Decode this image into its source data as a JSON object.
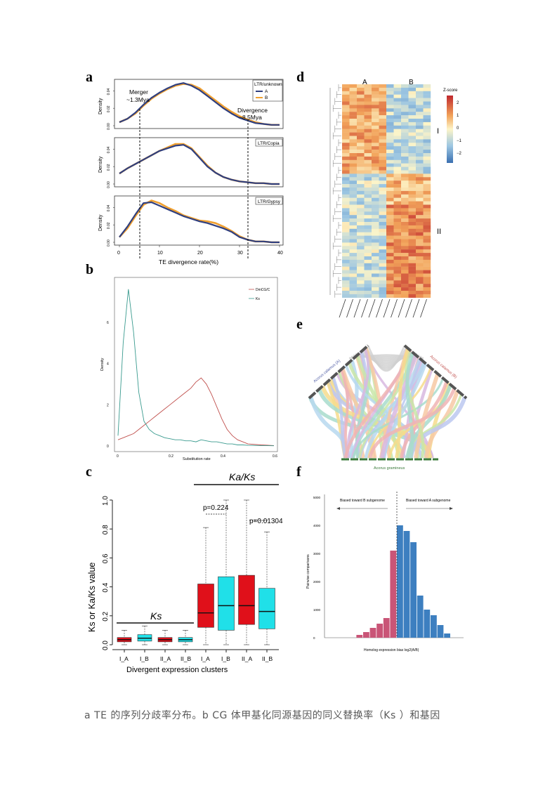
{
  "figure": {
    "panels": {
      "a": "a",
      "b": "b",
      "c": "c",
      "d": "d",
      "e": "e",
      "f": "f"
    },
    "caption": "a TE  的序列分歧率分布。b CG 体甲基化同源基因的同义替换率（Ks  ）和基因"
  },
  "panel_a": {
    "xlabel": "TE divergence rate(%)",
    "ylabel": "Density",
    "xticks": [
      "0",
      "10",
      "20",
      "30",
      "40"
    ],
    "yticks": [
      "0.00",
      "0.02",
      "0.04"
    ],
    "legend_title": "LTR/unknown",
    "legend": [
      {
        "name": "A",
        "color": "#2f3f7f"
      },
      {
        "name": "B",
        "color": "#f0a030"
      }
    ],
    "sub_titles": [
      "LTR/unknown",
      "LTR/Copia",
      "LTR/Gypsy"
    ],
    "annotations": {
      "merger": "Merger\n~1.3Mya",
      "merger_l1": "Merger",
      "merger_l2": "~1.3Mya",
      "divergence_l1": "Divergence",
      "divergence_l2": "~8.5Mya"
    }
  },
  "panel_b": {
    "xlabel": "Substitution rate",
    "ylabel": "Density",
    "xticks": [
      "0",
      "0.2",
      "0.4",
      "0.6"
    ],
    "yticks": [
      "0",
      "2",
      "4",
      "6"
    ],
    "legend": [
      {
        "name": "DmCG/C",
        "color": "#c0504d"
      },
      {
        "name": "Ks",
        "color": "#3a9b8f"
      }
    ]
  },
  "panel_c": {
    "title_right": "Ka/Ks",
    "title_left": "Ks",
    "xlabel": "Divergent expression clusters",
    "ylabel": "Ks or Ka/Ks value",
    "yticks": [
      "0.0",
      "0.2",
      "0.4",
      "0.6",
      "0.8",
      "1.0"
    ],
    "categories": [
      "I_A",
      "I_B",
      "II_A",
      "II_B",
      "I_A",
      "I_B",
      "II_A",
      "II_B"
    ],
    "pvalue_1": "p=0.224",
    "pvalue_2": "p=0.01304"
  },
  "panel_d": {
    "col_group_A": "A",
    "col_group_B": "B",
    "row_group_I": "I",
    "row_group_II": "II",
    "legend_title": "Z-score",
    "legend_ticks": [
      "2",
      "1",
      "0",
      "−1",
      "−2"
    ]
  },
  "panel_e": {
    "label_a": "Acorus calamus (A)",
    "label_b": "Acorus calamus (B)",
    "label_bottom": "Acorus gramineus"
  },
  "panel_f": {
    "xlabel": "Homolog expression bias log2(A/B)",
    "ylabel": "Pairwise comparisons",
    "yticks": [
      "0",
      "1000",
      "2000",
      "3000",
      "4000",
      "5000"
    ],
    "left_text": "Biased toward B subgenome",
    "right_text": "Biased toward A subgenome"
  },
  "chart_data": [
    {
      "type": "line",
      "panel": "a",
      "xlabel": "TE divergence rate(%)",
      "ylabel": "Density",
      "xlim": [
        0,
        40
      ],
      "ylim": [
        0,
        0.05
      ],
      "subplots": [
        {
          "title": "LTR/unknown",
          "x": [
            0,
            2,
            4,
            6,
            8,
            10,
            12,
            14,
            16,
            18,
            20,
            22,
            24,
            26,
            28,
            30,
            32,
            34,
            36,
            38,
            40
          ],
          "series": [
            {
              "name": "A",
              "values": [
                0.004,
                0.008,
                0.015,
                0.024,
                0.032,
                0.038,
                0.043,
                0.047,
                0.049,
                0.046,
                0.041,
                0.034,
                0.027,
                0.02,
                0.014,
                0.009,
                0.006,
                0.003,
                0.002,
                0.001,
                0.001
              ]
            },
            {
              "name": "B",
              "values": [
                0.004,
                0.008,
                0.014,
                0.023,
                0.031,
                0.037,
                0.042,
                0.046,
                0.048,
                0.047,
                0.043,
                0.036,
                0.029,
                0.022,
                0.016,
                0.011,
                0.007,
                0.004,
                0.002,
                0.001,
                0.001
              ]
            }
          ]
        },
        {
          "title": "LTR/Copia",
          "x": [
            0,
            2,
            4,
            6,
            8,
            10,
            12,
            14,
            16,
            18,
            20,
            22,
            24,
            26,
            28,
            30,
            32,
            34,
            36,
            38,
            40
          ],
          "series": [
            {
              "name": "A",
              "values": [
                0.012,
                0.018,
                0.023,
                0.028,
                0.033,
                0.038,
                0.041,
                0.044,
                0.045,
                0.04,
                0.03,
                0.02,
                0.013,
                0.008,
                0.005,
                0.003,
                0.002,
                0.001,
                0.001,
                0.0,
                0.0
              ]
            },
            {
              "name": "B",
              "values": [
                0.012,
                0.018,
                0.023,
                0.028,
                0.033,
                0.038,
                0.042,
                0.046,
                0.046,
                0.041,
                0.031,
                0.021,
                0.013,
                0.008,
                0.005,
                0.003,
                0.002,
                0.001,
                0.001,
                0.0,
                0.0
              ]
            }
          ]
        },
        {
          "title": "LTR/Gypsy",
          "x": [
            0,
            2,
            4,
            6,
            8,
            10,
            12,
            14,
            16,
            18,
            20,
            22,
            24,
            26,
            28,
            30,
            32,
            34,
            36,
            38,
            40
          ],
          "series": [
            {
              "name": "A",
              "values": [
                0.006,
                0.018,
                0.032,
                0.045,
                0.046,
                0.042,
                0.038,
                0.034,
                0.03,
                0.027,
                0.024,
                0.022,
                0.019,
                0.016,
                0.012,
                0.006,
                0.003,
                0.001,
                0.001,
                0.0,
                0.0
              ]
            },
            {
              "name": "B",
              "values": [
                0.006,
                0.016,
                0.03,
                0.043,
                0.048,
                0.045,
                0.04,
                0.036,
                0.031,
                0.028,
                0.025,
                0.024,
                0.022,
                0.018,
                0.013,
                0.007,
                0.003,
                0.001,
                0.001,
                0.0,
                0.0
              ]
            }
          ]
        }
      ]
    },
    {
      "type": "line",
      "panel": "b",
      "xlabel": "Substitution rate",
      "ylabel": "Density",
      "xlim": [
        0,
        0.6
      ],
      "ylim": [
        0,
        8
      ],
      "x": [
        0.0,
        0.02,
        0.04,
        0.06,
        0.08,
        0.1,
        0.12,
        0.14,
        0.16,
        0.18,
        0.2,
        0.22,
        0.24,
        0.26,
        0.28,
        0.3,
        0.32,
        0.34,
        0.36,
        0.38,
        0.4,
        0.42,
        0.44,
        0.46,
        0.48,
        0.5,
        0.55,
        0.6
      ],
      "series": [
        {
          "name": "DmCG/C",
          "values": [
            0.3,
            0.4,
            0.5,
            0.6,
            0.8,
            1.0,
            1.2,
            1.4,
            1.6,
            1.8,
            2.0,
            2.2,
            2.4,
            2.6,
            2.8,
            3.1,
            3.3,
            3.0,
            2.5,
            1.9,
            1.3,
            0.8,
            0.5,
            0.3,
            0.2,
            0.1,
            0.05,
            0.02
          ]
        },
        {
          "name": "Ks",
          "values": [
            0.5,
            5.0,
            7.6,
            5.5,
            2.6,
            1.2,
            0.8,
            0.6,
            0.5,
            0.4,
            0.35,
            0.3,
            0.3,
            0.25,
            0.25,
            0.2,
            0.3,
            0.25,
            0.2,
            0.2,
            0.15,
            0.1,
            0.1,
            0.05,
            0.05,
            0.03,
            0.02,
            0.01
          ]
        }
      ]
    },
    {
      "type": "box",
      "panel": "c",
      "categories": [
        "I_A",
        "I_B",
        "II_A",
        "II_B",
        "I_A",
        "I_B",
        "II_A",
        "II_B"
      ],
      "ylim": [
        0,
        1.05
      ],
      "boxes": [
        {
          "group": "Ks",
          "cat": "I_A",
          "min": 0.0,
          "q1": 0.02,
          "median": 0.035,
          "q3": 0.05,
          "max": 0.1
        },
        {
          "group": "Ks",
          "cat": "I_B",
          "min": 0.0,
          "q1": 0.025,
          "median": 0.045,
          "q3": 0.07,
          "max": 0.13
        },
        {
          "group": "Ks",
          "cat": "II_A",
          "min": 0.0,
          "q1": 0.02,
          "median": 0.035,
          "q3": 0.05,
          "max": 0.1
        },
        {
          "group": "Ks",
          "cat": "II_B",
          "min": 0.0,
          "q1": 0.02,
          "median": 0.035,
          "q3": 0.05,
          "max": 0.1
        },
        {
          "group": "Ka/Ks",
          "cat": "I_A",
          "min": 0.0,
          "q1": 0.12,
          "median": 0.22,
          "q3": 0.42,
          "max": 0.81
        },
        {
          "group": "Ka/Ks",
          "cat": "I_B",
          "min": 0.0,
          "q1": 0.1,
          "median": 0.27,
          "q3": 0.47,
          "max": 1.0
        },
        {
          "group": "Ka/Ks",
          "cat": "II_A",
          "min": 0.0,
          "q1": 0.14,
          "median": 0.27,
          "q3": 0.48,
          "max": 1.0
        },
        {
          "group": "Ka/Ks",
          "cat": "II_B",
          "min": 0.0,
          "q1": 0.11,
          "median": 0.23,
          "q3": 0.39,
          "max": 0.78
        }
      ],
      "colors": {
        "A": "#e0101a",
        "B": "#20e0e8"
      }
    },
    {
      "type": "bar",
      "panel": "f",
      "xlabel": "Homolog expression bias log2(A/B)",
      "ylabel": "Pairwise comparisons",
      "ylim": [
        0,
        5000
      ],
      "categories": [
        -9,
        -8,
        -7,
        -6,
        -5,
        -4,
        -3,
        -2,
        -1,
        0,
        1,
        2,
        3,
        4,
        5,
        6,
        7,
        8,
        9
      ],
      "values": [
        0,
        0,
        0,
        0,
        100,
        200,
        350,
        500,
        700,
        3100,
        4000,
        3800,
        3400,
        1500,
        1000,
        800,
        450,
        150,
        0
      ],
      "colors": {
        "B": "#c95577",
        "A": "#3d7fc0"
      }
    }
  ]
}
